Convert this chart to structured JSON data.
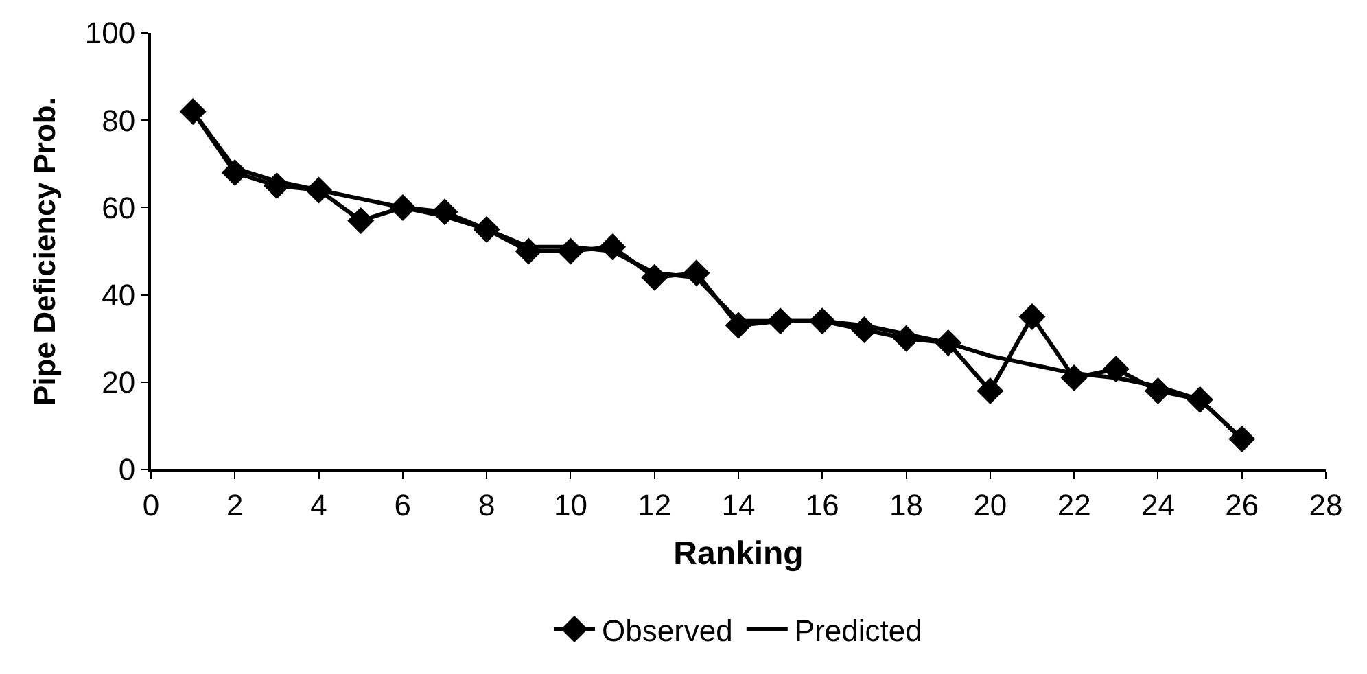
{
  "chart_data": {
    "type": "line",
    "xlabel": "Ranking",
    "ylabel": "Pipe Deficiency Prob.",
    "x": [
      1,
      2,
      3,
      4,
      5,
      6,
      7,
      8,
      9,
      10,
      11,
      12,
      13,
      14,
      15,
      16,
      17,
      18,
      19,
      20,
      21,
      22,
      23,
      24,
      25,
      26
    ],
    "series": [
      {
        "name": "Observed",
        "color": "#000000",
        "marker": "diamond",
        "values": [
          82,
          68,
          65,
          64,
          57,
          60,
          59,
          55,
          50,
          50,
          51,
          44,
          45,
          33,
          34,
          34,
          32,
          30,
          29,
          18,
          35,
          21,
          23,
          18,
          16,
          7
        ]
      },
      {
        "name": "Predicted",
        "color": "#000000",
        "marker": "none",
        "values": [
          82,
          69,
          66,
          64,
          62,
          60,
          58,
          55,
          51,
          51,
          50,
          45,
          44,
          34,
          34,
          34,
          33,
          31,
          29,
          26,
          24,
          22,
          21,
          19,
          16,
          7
        ]
      }
    ],
    "xlim": [
      0,
      28
    ],
    "xticks": [
      0,
      2,
      4,
      6,
      8,
      10,
      12,
      14,
      16,
      18,
      20,
      22,
      24,
      26,
      28
    ],
    "ylim": [
      0,
      100
    ],
    "yticks": [
      0,
      20,
      40,
      60,
      80,
      100
    ],
    "legend": "bottom",
    "line_style": "solid"
  }
}
